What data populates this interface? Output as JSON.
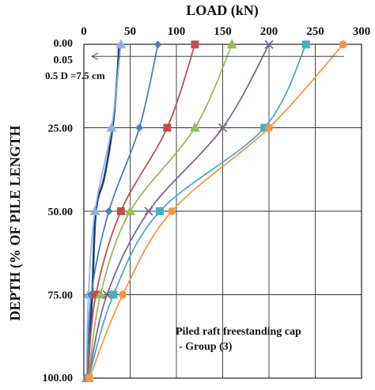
{
  "chart_data": {
    "type": "line",
    "xlabel": "LOAD (kN)",
    "ylabel": "DEPTH (% OF PILE LENGTH",
    "xlim": [
      0,
      300
    ],
    "ylim": [
      0,
      100
    ],
    "y_inverted": true,
    "x_axis_position": "top",
    "x_ticks": [
      "0",
      "50",
      "100",
      "150",
      "200",
      "250",
      "300"
    ],
    "y_ticks": [
      "0.00",
      "0.05",
      "25.00",
      "50.00",
      "75.00",
      "100.00"
    ],
    "y_tick_values": [
      0,
      0.05,
      25,
      50,
      75,
      100
    ],
    "grid": true,
    "annotation_depth": "0.5 D =7.5 cm",
    "annotation_box": [
      "Piled raft freestanding  cap",
      "- Group (3)"
    ],
    "series": [
      {
        "color": "#1f3a78",
        "marker": "none",
        "x": [
          38,
          36,
          31,
          22,
          13,
          9,
          4
        ],
        "y": [
          0.05,
          10,
          25,
          40,
          50,
          75,
          100
        ]
      },
      {
        "color": "#8db3e2",
        "marker": "triangle",
        "x": [
          40,
          30,
          12,
          5,
          3
        ],
        "y": [
          0.05,
          25,
          50,
          75,
          100
        ]
      },
      {
        "color": "#4a7fbf",
        "marker": "diamond",
        "x": [
          80,
          60,
          27,
          8,
          4
        ],
        "y": [
          0.05,
          25,
          50,
          75,
          100
        ]
      },
      {
        "color": "#c0504d",
        "marker": "square",
        "x": [
          120,
          90,
          40,
          13,
          4
        ],
        "y": [
          0.05,
          25,
          50,
          75,
          100
        ]
      },
      {
        "color": "#9bbb59",
        "marker": "triangle",
        "x": [
          160,
          120,
          50,
          18,
          5
        ],
        "y": [
          0.05,
          25,
          50,
          75,
          100
        ]
      },
      {
        "color": "#8064a2",
        "marker": "x",
        "x": [
          200,
          150,
          70,
          25,
          5
        ],
        "y": [
          0.05,
          25,
          50,
          75,
          100
        ]
      },
      {
        "color": "#4bacc6",
        "marker": "square",
        "x": [
          240,
          195,
          82,
          32,
          5
        ],
        "y": [
          0.05,
          25,
          50,
          75,
          100
        ]
      },
      {
        "color": "#f79646",
        "marker": "circle",
        "x": [
          280,
          200,
          95,
          42,
          6
        ],
        "y": [
          0.05,
          25,
          50,
          75,
          100
        ]
      }
    ]
  }
}
